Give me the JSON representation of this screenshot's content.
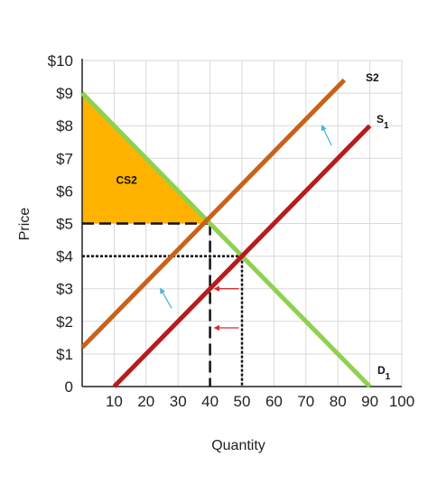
{
  "chart_data": {
    "type": "line",
    "xlabel": "Quantity",
    "ylabel": "Price",
    "xlim": [
      0,
      100
    ],
    "ylim": [
      0,
      10
    ],
    "x_ticks": [
      "0",
      "10",
      "20",
      "30",
      "40",
      "50",
      "60",
      "70",
      "80",
      "90",
      "100"
    ],
    "y_ticks": [
      "0",
      "$1",
      "$2",
      "$3",
      "$4",
      "$5",
      "$6",
      "$7",
      "$8",
      "$9",
      "$10"
    ],
    "grid": true,
    "series": [
      {
        "name": "D",
        "subscript": "1",
        "color": "#8fd14f",
        "points": [
          [
            0,
            9
          ],
          [
            90,
            0
          ]
        ]
      },
      {
        "name": "S",
        "subscript": "1",
        "color": "#b71c1c",
        "points": [
          [
            10,
            0
          ],
          [
            90,
            8
          ]
        ]
      },
      {
        "name": "S2",
        "subscript": "",
        "color": "#c8621a",
        "points": [
          [
            0,
            1.2
          ],
          [
            82,
            9.4
          ]
        ]
      }
    ],
    "shaded_area": {
      "label": "CS2",
      "color": "#ffb300",
      "points": [
        [
          0,
          9
        ],
        [
          0,
          5
        ],
        [
          40,
          5
        ]
      ]
    },
    "reference_lines": [
      {
        "style": "dashed",
        "points": [
          [
            0,
            5
          ],
          [
            40,
            5
          ]
        ]
      },
      {
        "style": "dashed",
        "points": [
          [
            40,
            5
          ],
          [
            40,
            0
          ]
        ]
      },
      {
        "style": "dotted",
        "points": [
          [
            0,
            4
          ],
          [
            50,
            4
          ]
        ]
      },
      {
        "style": "dotted",
        "points": [
          [
            50,
            4
          ],
          [
            50,
            0
          ]
        ]
      }
    ],
    "arrows": [
      {
        "color": "#4fb3d9",
        "from": [
          78,
          7.4
        ],
        "to": [
          75,
          8
        ]
      },
      {
        "color": "#4fb3d9",
        "from": [
          28,
          2.4
        ],
        "to": [
          24.5,
          3
        ]
      },
      {
        "color": "#d32f2f",
        "from": [
          49,
          3
        ],
        "to": [
          41.5,
          3
        ]
      },
      {
        "color": "#d32f2f",
        "from": [
          49,
          1.8
        ],
        "to": [
          41.5,
          1.8
        ]
      }
    ]
  }
}
